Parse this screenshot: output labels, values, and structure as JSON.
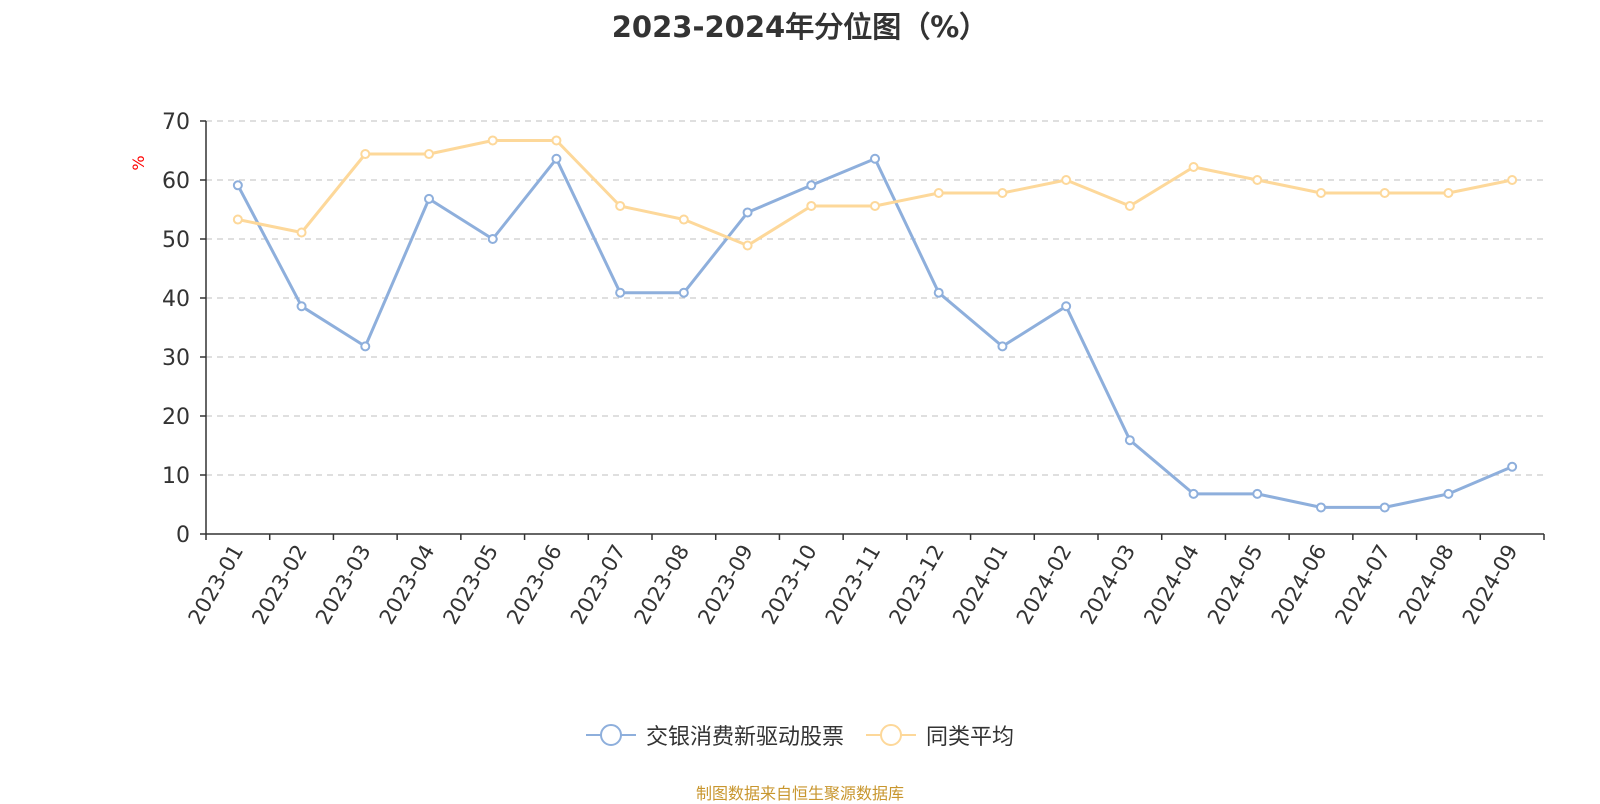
{
  "chart_data": {
    "type": "line",
    "title": "2023-2024年分位图（%）",
    "ylabel": "%",
    "xlabel": "",
    "ylim": [
      0,
      70
    ],
    "yticks": [
      0,
      10,
      20,
      30,
      40,
      50,
      60,
      70
    ],
    "grid": true,
    "legend_position": "bottom",
    "categories": [
      "2023-01",
      "2023-02",
      "2023-03",
      "2023-04",
      "2023-05",
      "2023-06",
      "2023-07",
      "2023-08",
      "2023-09",
      "2023-10",
      "2023-11",
      "2023-12",
      "2024-01",
      "2024-02",
      "2024-03",
      "2024-04",
      "2024-05",
      "2024-06",
      "2024-07",
      "2024-08",
      "2024-09"
    ],
    "series": [
      {
        "name": "交银消费新驱动股票",
        "color": "#8eafdc",
        "values": [
          59.1,
          38.6,
          31.8,
          56.8,
          50.0,
          63.6,
          40.9,
          40.9,
          54.5,
          59.1,
          63.6,
          40.9,
          31.8,
          38.6,
          15.9,
          6.8,
          6.8,
          4.5,
          4.5,
          6.8,
          11.4
        ]
      },
      {
        "name": "同类平均",
        "color": "#fdd89a",
        "values": [
          53.3,
          51.1,
          64.4,
          64.4,
          66.7,
          66.7,
          55.6,
          53.3,
          48.9,
          55.6,
          55.6,
          57.8,
          57.8,
          60.0,
          55.6,
          62.2,
          60.0,
          57.8,
          57.8,
          57.8,
          60.0
        ]
      }
    ]
  },
  "source_note": "制图数据来自恒生聚源数据库",
  "colors": {
    "axis": "#333333",
    "grid": "#cccccc",
    "ylabel": "#ff0000",
    "source": "#c8962e"
  }
}
